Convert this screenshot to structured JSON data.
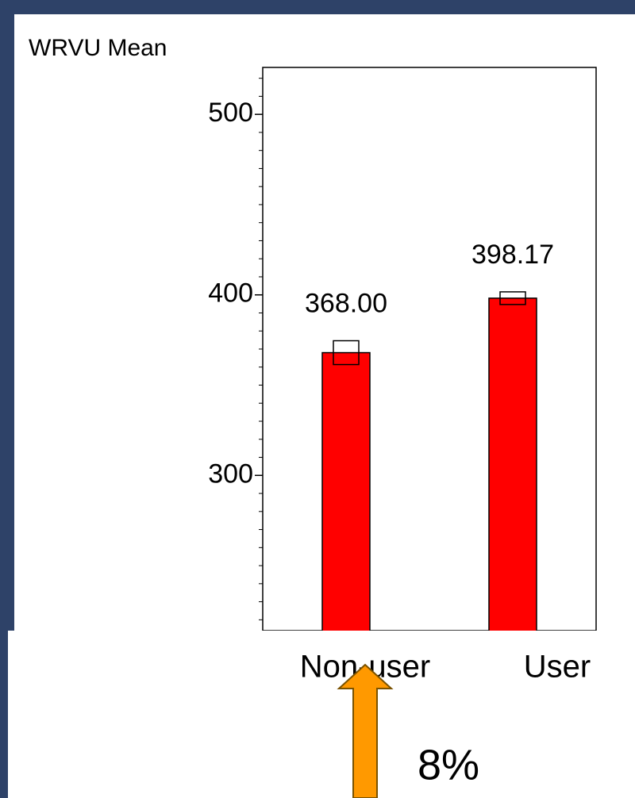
{
  "chart_data": {
    "type": "bar",
    "y_axis_title": "WRVU Mean",
    "categories": [
      "Non-user",
      "User"
    ],
    "values": [
      368.0,
      398.17
    ],
    "value_labels": [
      "368.00",
      "398.17"
    ],
    "error": [
      6.6,
      3.5
    ],
    "color": "#ff0000",
    "ylim": [
      214,
      526
    ],
    "yticks": [
      300,
      400,
      500
    ],
    "minor_yticks": [
      220,
      230,
      240,
      250,
      260,
      270,
      280,
      290,
      310,
      320,
      330,
      340,
      350,
      360,
      370,
      380,
      390,
      410,
      420,
      430,
      440,
      450,
      460,
      470,
      480,
      490,
      510,
      520
    ],
    "annotation": "8%"
  }
}
